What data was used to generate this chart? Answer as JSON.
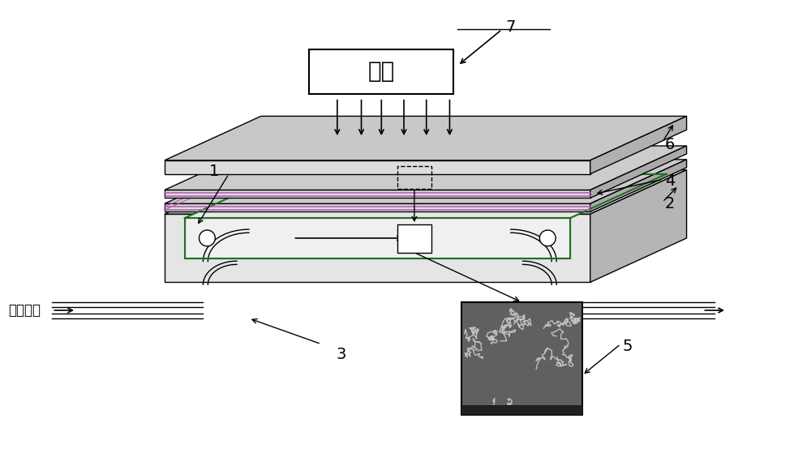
{
  "bg_color": "#ffffff",
  "lc": "#000000",
  "light_label": "光源",
  "substrate_label": "降解底物",
  "purple": "#b060b0",
  "green": "#207020",
  "gray_top": "#d8d8d8",
  "gray_face": "#e8e8e8",
  "gray_side": "#b8b8b8",
  "gray_dark": "#a0a0a0"
}
